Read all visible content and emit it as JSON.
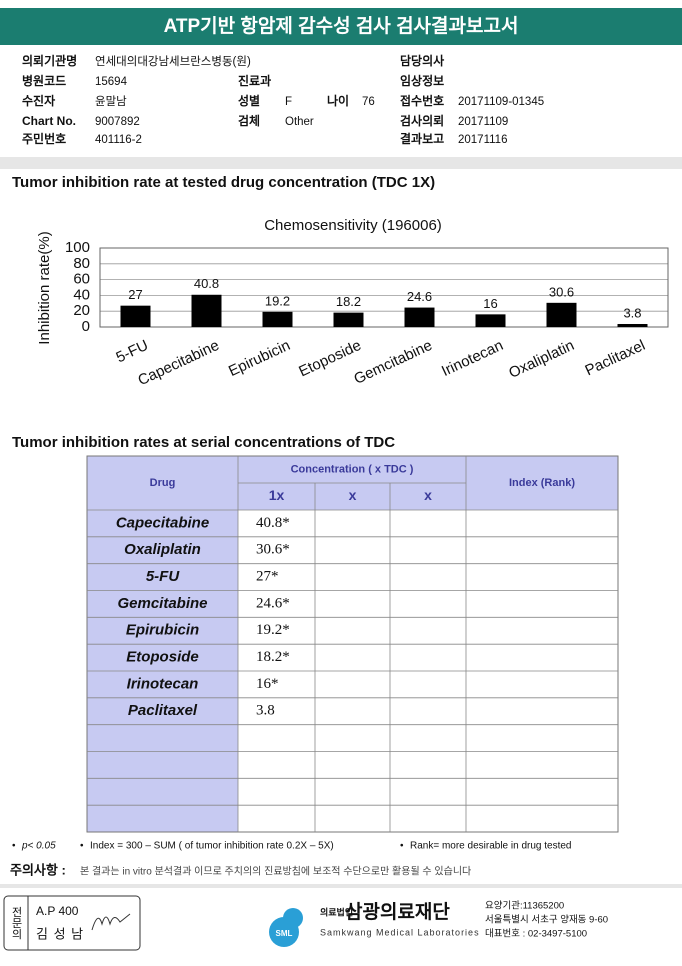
{
  "header": {
    "title": "ATP기반 항암제 감수성 검사 검사결과보고서"
  },
  "info": {
    "fields": [
      {
        "label": "의뢰기관명",
        "value": "연세대의대강남세브란스병동(원)"
      },
      {
        "label": "담당의사"
      },
      {
        "label": "병원코드",
        "value": "15694"
      },
      {
        "label": "진료과"
      },
      {
        "label": "임상정보"
      },
      {
        "label": "수진자",
        "value": "윤말남"
      },
      {
        "label": "성별",
        "value": "F"
      },
      {
        "label": "나이",
        "value": "76"
      },
      {
        "label": "접수번호",
        "value": "20171109-01345"
      },
      {
        "label": "Chart No.",
        "value": "9007892"
      },
      {
        "label": "검체",
        "value": "Other"
      },
      {
        "label": "검사의뢰",
        "value": "20171109"
      },
      {
        "label": "주민번호",
        "value": "401116-2"
      },
      {
        "label": "결과보고",
        "value": "20171116"
      }
    ]
  },
  "section1": {
    "title": "Tumor inhibition rate at tested drug concentration (TDC 1X)"
  },
  "chart_data": {
    "type": "bar",
    "title": "Chemosensitivity (196006)",
    "y_label": "Inhibition rate(%)",
    "categories": [
      "5-FU",
      "Capecitabine",
      "Epirubicin",
      "Etoposide",
      "Gemcitabine",
      "Irinotecan",
      "Oxaliplatin",
      "Paclitaxel"
    ],
    "values": [
      27,
      40.8,
      19.2,
      18.2,
      24.6,
      16,
      30.6,
      3.8
    ],
    "color": "#000000",
    "ylim": [
      0,
      100
    ],
    "yticks": [
      0,
      20,
      40,
      60,
      80,
      100
    ],
    "grid": true
  },
  "section2": {
    "title": "Tumor inhibition rates at serial concentrations of TDC"
  },
  "table": {
    "header": {
      "drug": "Drug",
      "concentration": "Concentration ( x TDC )",
      "cols": [
        "1x",
        "x",
        "x"
      ],
      "index": "Index (Rank)"
    },
    "rows": [
      [
        "Capecitabine",
        "40.8*"
      ],
      [
        "Oxaliplatin",
        "30.6*"
      ],
      [
        "5-FU",
        "27*"
      ],
      [
        "Gemcitabine",
        "24.6*"
      ],
      [
        "Epirubicin",
        "19.2*"
      ],
      [
        "Etoposide",
        "18.2*"
      ],
      [
        "Irinotecan",
        "16*"
      ],
      [
        "Paclitaxel",
        "3.8"
      ]
    ]
  },
  "notes": [
    "p< 0.05",
    "Index = 300 – SUM ( of tumor inhibition rate 0.2X – 5X)",
    "Rank= more desirable in drug tested"
  ],
  "caution": {
    "label": "주의사항 :",
    "text": "본 결과는 in vitro 분석결과 이므로 주치의의 진료방침에 보조적 수단으로만 활용될 수 있습니다"
  },
  "footer": {
    "specialist": "전문의",
    "ap": "A.P 400",
    "doctor": "김 성 남",
    "logo": "SML",
    "corp_type": "의료법인",
    "org": "삼광의료재단",
    "org_en": "Samkwang Medical Laboratories",
    "code": "요양기관:11365200",
    "address": "서울특별시 서초구 양재동 9-60",
    "phone": "대표번호 : 02-3497-5100"
  }
}
